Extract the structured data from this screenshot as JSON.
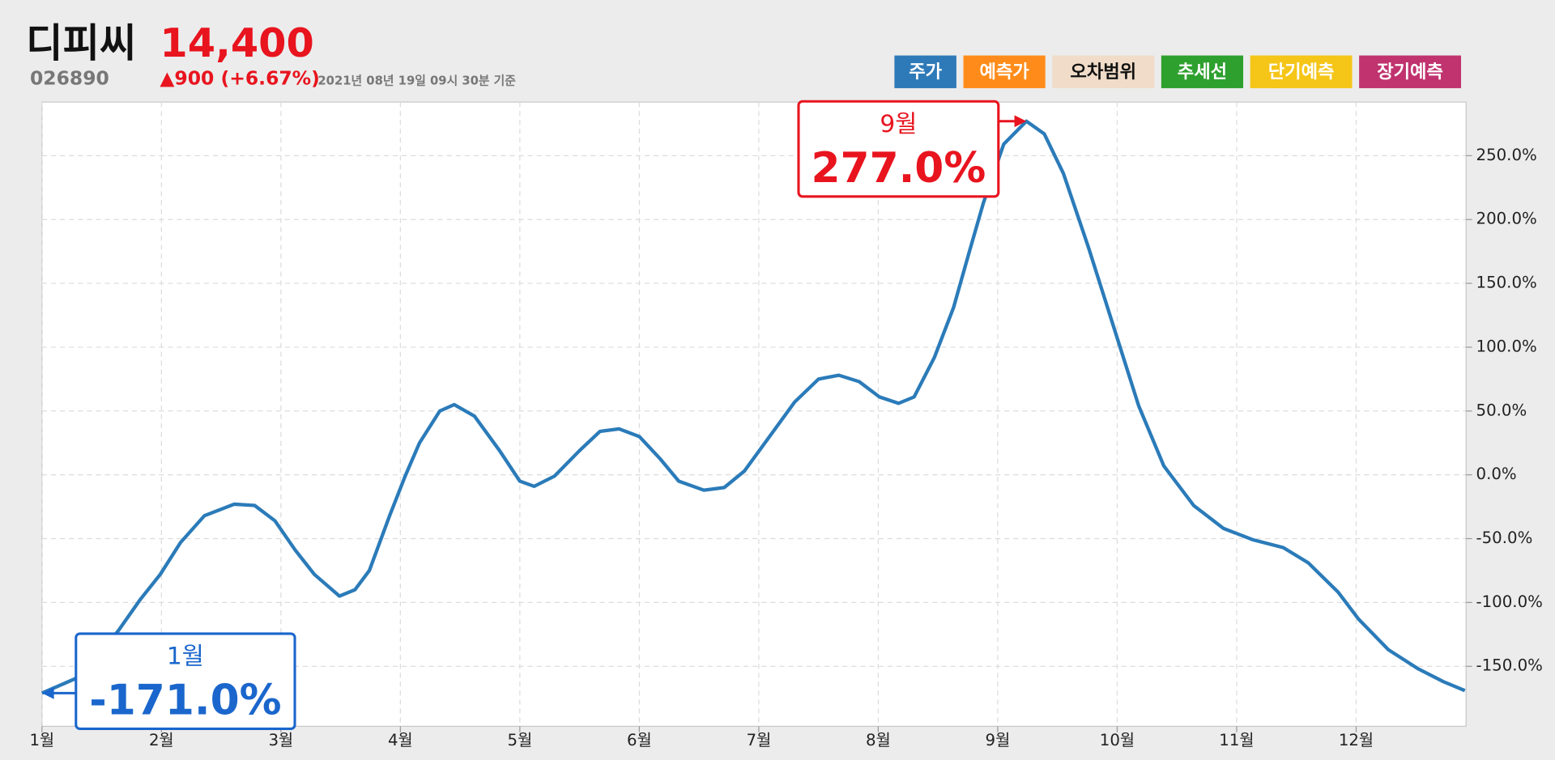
{
  "header": {
    "name": "디피씨",
    "price": "14,400",
    "code": "026890",
    "change": "▲900 (+6.67%)",
    "timestamp": "2021년 08년 19일 09시 30분 기준"
  },
  "buttons": [
    {
      "label": "주가",
      "color": "#2e7ab8",
      "text_color": "#ffffff"
    },
    {
      "label": "예측가",
      "color": "#ff8c1a",
      "text_color": "#ffffff"
    },
    {
      "label": "오차범위",
      "color": "#f0dcc8",
      "text_color": "#111111"
    },
    {
      "label": "추세선",
      "color": "#2ea02e",
      "text_color": "#ffffff"
    },
    {
      "label": "단기예측",
      "color": "#f5c518",
      "text_color": "#ffffff"
    },
    {
      "label": "장기예측",
      "color": "#c0336e",
      "text_color": "#ffffff"
    }
  ],
  "chart_data": {
    "type": "line",
    "color": "#2b7bb9",
    "grid": true,
    "x": [
      1.0,
      1.32,
      1.64,
      1.82,
      1.99,
      2.16,
      2.36,
      2.61,
      2.78,
      2.95,
      3.12,
      3.28,
      3.49,
      3.62,
      3.74,
      3.91,
      4.04,
      4.16,
      4.33,
      4.45,
      4.62,
      4.83,
      5.0,
      5.12,
      5.29,
      5.5,
      5.67,
      5.83,
      6.0,
      6.17,
      6.33,
      6.54,
      6.71,
      6.88,
      7.09,
      7.3,
      7.5,
      7.67,
      7.84,
      8.01,
      8.17,
      8.3,
      8.47,
      8.63,
      8.76,
      8.88,
      9.05,
      9.24,
      9.39,
      9.55,
      9.76,
      9.97,
      10.18,
      10.39,
      10.64,
      10.89,
      11.14,
      11.39,
      11.6,
      11.85,
      12.02,
      12.27,
      12.52,
      12.73,
      12.91
    ],
    "values": [
      -171,
      -158,
      -122,
      -98,
      -78,
      -53,
      -32,
      -23,
      -24,
      -36,
      -59,
      -78,
      -95,
      -90,
      -75,
      -32,
      -1,
      25,
      50,
      55,
      46,
      19,
      -5,
      -9,
      -1,
      19,
      34,
      36,
      30,
      13,
      -5,
      -12,
      -10,
      3,
      30,
      57,
      75,
      78,
      73,
      61,
      56,
      61,
      92,
      131,
      174,
      213,
      259,
      277,
      267,
      236,
      178,
      116,
      54,
      7,
      -24,
      -42,
      -51,
      -57,
      -69,
      -92,
      -113,
      -137,
      -152,
      -162,
      -169
    ],
    "xlim": [
      1,
      12.92
    ],
    "xticks": [
      {
        "value": 1,
        "label": "1월"
      },
      {
        "value": 2,
        "label": "2월"
      },
      {
        "value": 3,
        "label": "3월"
      },
      {
        "value": 4,
        "label": "4월"
      },
      {
        "value": 5,
        "label": "5월"
      },
      {
        "value": 6,
        "label": "6월"
      },
      {
        "value": 7,
        "label": "7월"
      },
      {
        "value": 8,
        "label": "8월"
      },
      {
        "value": 9,
        "label": "9월"
      },
      {
        "value": 10,
        "label": "10월"
      },
      {
        "value": 11,
        "label": "11월"
      },
      {
        "value": 12,
        "label": "12월"
      }
    ],
    "ylim": [
      -197,
      292
    ],
    "yticks": [
      {
        "value": -150,
        "label": "-150.0%"
      },
      {
        "value": -100,
        "label": "-100.0%"
      },
      {
        "value": -50,
        "label": "-50.0%"
      },
      {
        "value": 0,
        "label": "0.0%"
      },
      {
        "value": 50,
        "label": "50.0%"
      },
      {
        "value": 100,
        "label": "100.0%"
      },
      {
        "value": 150,
        "label": "150.0%"
      },
      {
        "value": 200,
        "label": "200.0%"
      },
      {
        "value": 250,
        "label": "250.0%"
      }
    ],
    "annotations": [
      {
        "x": 1,
        "value": -171,
        "label": "1월",
        "value_label": "-171.0%",
        "color": "#1a66cc"
      },
      {
        "x": 9.24,
        "value": 277,
        "label": "9월",
        "value_label": "277.0%",
        "color": "#e8141e"
      }
    ]
  }
}
